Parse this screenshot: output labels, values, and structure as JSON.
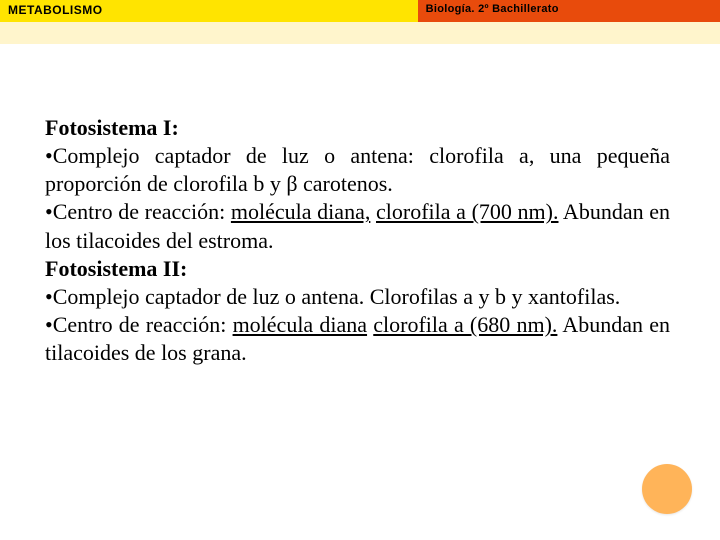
{
  "header": {
    "left_label": "METABOLISMO",
    "right_label": "Biología. 2º Bachillerato",
    "left_bg": "#ffe400",
    "right_bg": "#e84b0c",
    "sub_bg": "#fff5cc"
  },
  "content": {
    "fs1_heading": "Fotosistema I:",
    "fs1_bullet1": "•Complejo captador de luz o antena: clorofila a, una pequeña proporción de clorofila b y β carotenos.",
    "fs1_b2_pre": "•Centro de reacción: ",
    "fs1_b2_u1": "molécula diana,",
    "fs1_b2_mid": " ",
    "fs1_b2_u2": "clorofila a (700 nm).",
    "fs1_b2_post": " Abundan en los tilacoides del estroma.",
    "fs2_heading": "Fotosistema II:",
    "fs2_bullet1": "•Complejo captador de luz o antena. Clorofilas a y b y xantofilas.",
    "fs2_b2_pre": "•Centro de reacción: ",
    "fs2_b2_u1": "molécula diana",
    "fs2_b2_mid": " ",
    "fs2_b2_u2": "clorofila a (680 nm).",
    "fs2_b2_post": " Abundan en tilacoides de los grana."
  },
  "style": {
    "body_fontsize": 22,
    "circle_color": "#ffb459",
    "text_color": "#000000",
    "background": "#ffffff"
  }
}
